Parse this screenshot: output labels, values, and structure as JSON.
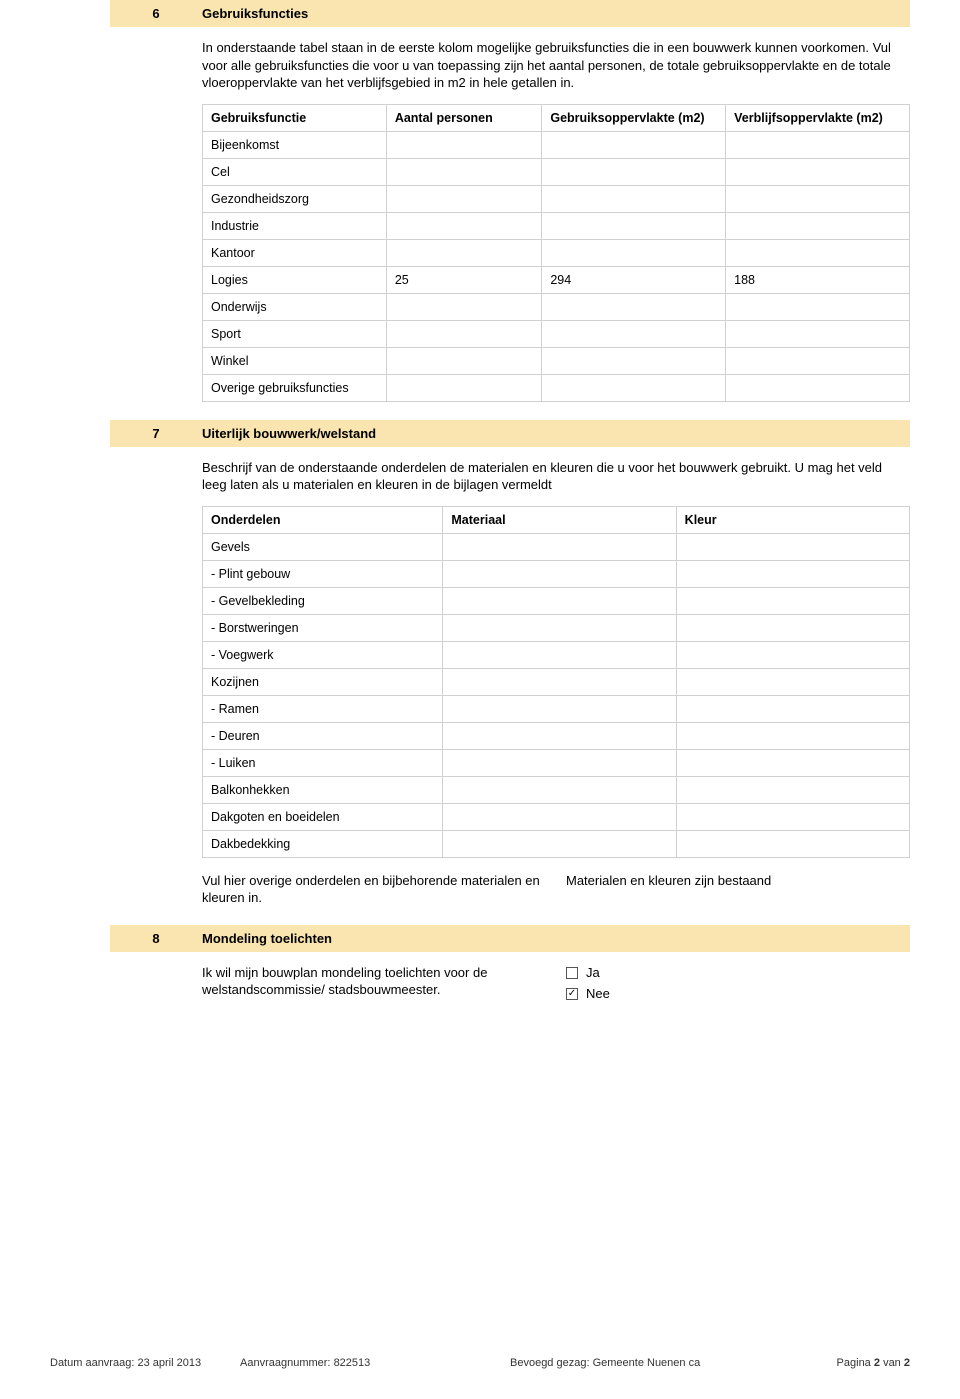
{
  "sections": {
    "s6": {
      "num": "6",
      "title": "Gebruiksfuncties",
      "intro": "In onderstaande tabel staan in de eerste kolom mogelijke gebruiksfuncties die in een bouwwerk kunnen voorkomen. Vul voor alle gebruiksfuncties die voor u van toepassing zijn het aantal personen, de totale gebruiksoppervlakte en de totale vloeroppervlakte van het verblijfsgebied in m2 in hele getallen in.",
      "table": {
        "headers": [
          "Gebruiksfunctie",
          "Aantal personen",
          "Gebruiksoppervlakte (m2)",
          "Verblijfsoppervlakte (m2)"
        ],
        "rows": [
          [
            "Bijeenkomst",
            "",
            "",
            ""
          ],
          [
            "Cel",
            "",
            "",
            ""
          ],
          [
            "Gezondheidszorg",
            "",
            "",
            ""
          ],
          [
            "Industrie",
            "",
            "",
            ""
          ],
          [
            "Kantoor",
            "",
            "",
            ""
          ],
          [
            "Logies",
            "25",
            "294",
            "188"
          ],
          [
            "Onderwijs",
            "",
            "",
            ""
          ],
          [
            "Sport",
            "",
            "",
            ""
          ],
          [
            "Winkel",
            "",
            "",
            ""
          ],
          [
            "Overige gebruiksfuncties",
            "",
            "",
            ""
          ]
        ]
      }
    },
    "s7": {
      "num": "7",
      "title": "Uiterlijk bouwwerk/welstand",
      "intro": "Beschrijf van de onderstaande onderdelen de materialen en kleuren die u voor het bouwwerk gebruikt. U mag het veld leeg laten als u materialen en kleuren in de bijlagen vermeldt",
      "table": {
        "headers": [
          "Onderdelen",
          "Materiaal",
          "Kleur"
        ],
        "rows": [
          [
            "Gevels",
            "",
            ""
          ],
          [
            "- Plint gebouw",
            "",
            ""
          ],
          [
            "- Gevelbekleding",
            "",
            ""
          ],
          [
            "- Borstweringen",
            "",
            ""
          ],
          [
            "- Voegwerk",
            "",
            ""
          ],
          [
            "Kozijnen",
            "",
            ""
          ],
          [
            "- Ramen",
            "",
            ""
          ],
          [
            "- Deuren",
            "",
            ""
          ],
          [
            "- Luiken",
            "",
            ""
          ],
          [
            "Balkonhekken",
            "",
            ""
          ],
          [
            "Dakgoten en boeidelen",
            "",
            ""
          ],
          [
            "Dakbedekking",
            "",
            ""
          ]
        ]
      },
      "extra_left": "Vul hier overige onderdelen en bijbehorende materialen en kleuren in.",
      "extra_right": "Materialen en kleuren zijn bestaand"
    },
    "s8": {
      "num": "8",
      "title": "Mondeling toelichten",
      "question": "Ik wil mijn bouwplan mondeling toelichten voor de welstandscommissie/ stadsbouwmeester.",
      "options": [
        {
          "label": "Ja",
          "checked": false
        },
        {
          "label": "Nee",
          "checked": true
        }
      ]
    }
  },
  "footer": {
    "date_label": "Datum aanvraag:",
    "date_value": "23 april 2013",
    "num_label": "Aanvraagnummer:",
    "num_value": "822513",
    "gezag_label": "Bevoegd gezag:",
    "gezag_value": "Gemeente Nuenen ca",
    "page_label": "Pagina",
    "page_current": "2",
    "page_of": "van",
    "page_total": "2"
  },
  "colors": {
    "section_bg": "#fae5b0",
    "border": "#d0d0d0",
    "text": "#000000"
  }
}
